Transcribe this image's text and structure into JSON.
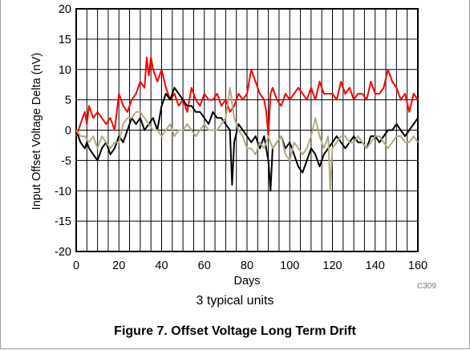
{
  "chart_data": {
    "type": "line",
    "title": "",
    "xlabel": "Days",
    "ylabel": "Input Offset Voltage Delta (nV)",
    "xlim": [
      0,
      160
    ],
    "ylim": [
      -20,
      20
    ],
    "xticks": [
      0,
      20,
      40,
      60,
      80,
      100,
      120,
      140,
      160
    ],
    "yticks": [
      -20,
      -15,
      -10,
      -5,
      0,
      5,
      10,
      15,
      20
    ],
    "xtick_labels": [
      "0",
      "20",
      "40",
      "60",
      "80",
      "100",
      "120",
      "140",
      "160"
    ],
    "ytick_labels": [
      "-20",
      "-15",
      "-10",
      "-5",
      "0",
      "5",
      "10",
      "15",
      "20"
    ],
    "grid": true,
    "series": [
      {
        "color": "#ff0000",
        "x": [
          0,
          2,
          4,
          5,
          6,
          8,
          10,
          12,
          14,
          16,
          18,
          20,
          22,
          24,
          26,
          28,
          30,
          32,
          33,
          34,
          35,
          36,
          38,
          40,
          42,
          44,
          46,
          48,
          50,
          52,
          54,
          56,
          58,
          60,
          62,
          64,
          66,
          68,
          70,
          72,
          74,
          76,
          78,
          80,
          82,
          84,
          86,
          88,
          89,
          90,
          91,
          92,
          94,
          96,
          98,
          100,
          102,
          104,
          106,
          108,
          110,
          112,
          114,
          116,
          118,
          120,
          122,
          124,
          126,
          128,
          130,
          132,
          134,
          136,
          138,
          140,
          142,
          144,
          146,
          148,
          150,
          152,
          154,
          156,
          158,
          160
        ],
        "y": [
          -1,
          1,
          3,
          1,
          4,
          2,
          3,
          2,
          1,
          2,
          0,
          6,
          4,
          3,
          5,
          6,
          8,
          7,
          12,
          9,
          12,
          10,
          8,
          10,
          7,
          5,
          6,
          4,
          5,
          3,
          7,
          5,
          4,
          6,
          5,
          5,
          6,
          4,
          5,
          3,
          4,
          6,
          5,
          6,
          10,
          8,
          6,
          5,
          3,
          -1,
          6,
          7,
          5,
          4,
          6,
          5,
          6,
          7,
          6,
          5,
          7,
          5,
          8,
          6,
          6,
          6,
          5,
          8,
          6,
          7,
          5,
          6,
          6,
          5,
          8,
          6,
          6,
          7,
          10,
          8,
          7,
          5,
          6,
          3,
          6,
          5
        ]
      },
      {
        "color": "#000000",
        "x": [
          0,
          2,
          4,
          5,
          6,
          8,
          10,
          12,
          14,
          16,
          18,
          20,
          22,
          24,
          26,
          28,
          30,
          32,
          34,
          36,
          38,
          40,
          42,
          44,
          46,
          48,
          50,
          52,
          54,
          56,
          58,
          60,
          62,
          64,
          66,
          68,
          70,
          72,
          73,
          74,
          76,
          78,
          80,
          82,
          84,
          86,
          88,
          90,
          91,
          92,
          94,
          96,
          98,
          100,
          102,
          104,
          106,
          108,
          110,
          112,
          114,
          116,
          118,
          120,
          122,
          124,
          126,
          128,
          130,
          132,
          134,
          136,
          138,
          140,
          142,
          144,
          146,
          148,
          150,
          152,
          154,
          156,
          158,
          160
        ],
        "y": [
          0,
          -2,
          -3,
          -2,
          -3,
          -4,
          -5,
          -3,
          -2,
          -4,
          -3,
          -1,
          -2,
          0,
          2,
          1,
          2,
          0,
          1,
          2,
          0,
          4,
          6,
          5,
          7,
          6,
          5,
          4,
          4,
          3,
          3,
          2,
          1,
          3,
          2,
          2,
          1,
          0,
          -9,
          -2,
          1,
          0,
          -1,
          -2,
          -1,
          -3,
          -1,
          -5,
          -10,
          -3,
          -2,
          -1,
          -3,
          -2,
          -4,
          -6,
          -7,
          -5,
          -3,
          -4,
          -6,
          -4,
          -3,
          -2,
          -1,
          -2,
          -3,
          -2,
          -1,
          -2,
          -2,
          -3,
          -1,
          -1,
          -2,
          -1,
          0,
          0,
          1,
          0,
          -1,
          0,
          1,
          2
        ]
      },
      {
        "color": "#b2aa84",
        "x": [
          0,
          2,
          4,
          6,
          8,
          10,
          12,
          14,
          16,
          18,
          20,
          22,
          24,
          26,
          28,
          30,
          32,
          34,
          36,
          38,
          40,
          42,
          44,
          46,
          48,
          50,
          52,
          54,
          56,
          58,
          60,
          62,
          64,
          66,
          68,
          70,
          72,
          74,
          76,
          78,
          80,
          82,
          84,
          86,
          88,
          90,
          92,
          94,
          96,
          98,
          100,
          102,
          104,
          106,
          108,
          110,
          112,
          114,
          116,
          118,
          119,
          120,
          122,
          124,
          126,
          128,
          130,
          132,
          134,
          136,
          138,
          140,
          142,
          144,
          146,
          148,
          150,
          152,
          154,
          156,
          158,
          160
        ],
        "y": [
          0,
          -1,
          -1,
          -2,
          -1,
          -3,
          -1,
          -2,
          -3,
          -2,
          -2,
          1,
          2,
          2,
          3,
          3,
          2,
          1,
          0,
          0,
          -1,
          0,
          1,
          -1,
          0,
          0,
          1,
          0,
          -1,
          0,
          1,
          0,
          0,
          0,
          1,
          2,
          7,
          2,
          0,
          -1,
          -3,
          -3,
          -4,
          -2,
          -3,
          -1,
          -3,
          -2,
          -1,
          -4,
          -5,
          -2,
          -3,
          -4,
          -3,
          -1,
          2,
          -1,
          -3,
          -1,
          -10,
          -3,
          -2,
          -1,
          -1,
          -2,
          -2,
          -1,
          -2,
          -3,
          -2,
          -1,
          -1,
          -2,
          -3,
          -2,
          -1,
          -1,
          -2,
          -2,
          -1,
          -2
        ]
      }
    ]
  },
  "footnote_code": "C309",
  "note": "3 typical units",
  "caption": "Figure 7. Offset Voltage Long Term Drift"
}
